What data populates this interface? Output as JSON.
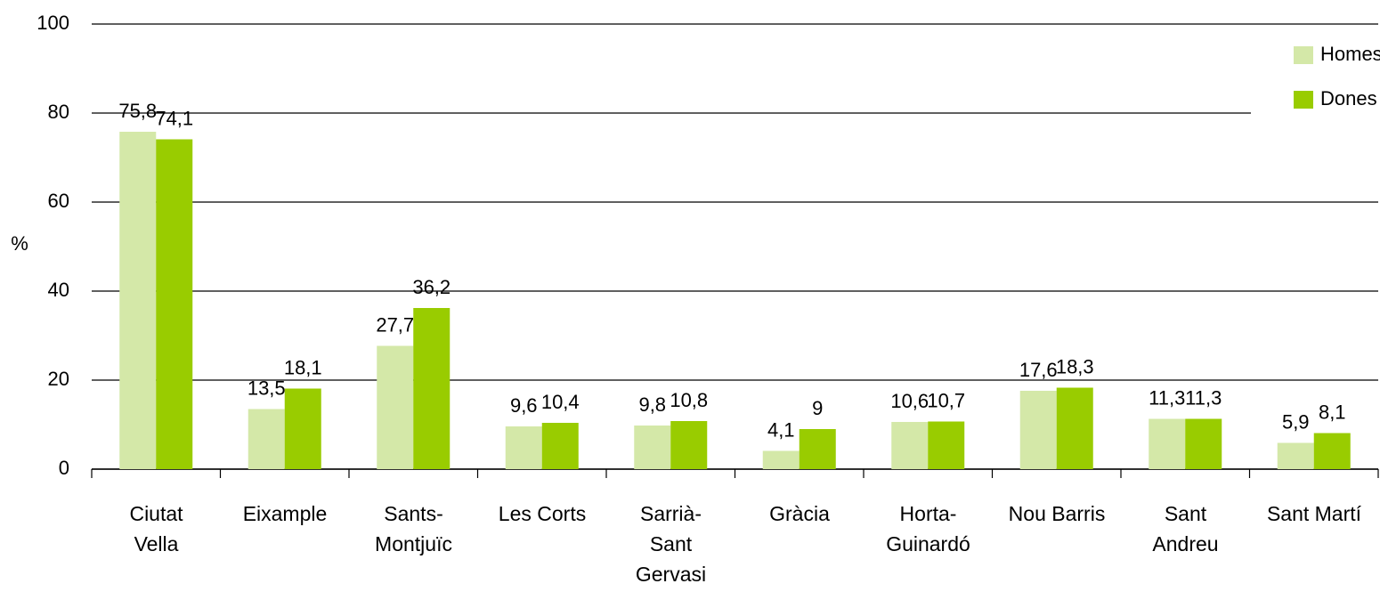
{
  "chart_data": {
    "type": "bar",
    "y_label": "%",
    "categories": [
      "Ciutat\nVella",
      "Eixample",
      "Sants-\nMontjuïc",
      "Les Corts",
      "Sarrià-\nSant\nGervasi",
      "Gràcia",
      "Horta-\nGuinardó",
      "Nou Barris",
      "Sant\nAndreu",
      "Sant Martí"
    ],
    "series": [
      {
        "name": "Homes",
        "color": "#d4e8a8",
        "values": [
          75.8,
          13.5,
          27.7,
          9.6,
          9.8,
          4.1,
          10.6,
          17.6,
          11.3,
          5.9
        ],
        "value_labels": [
          "75,8",
          "13,5",
          "27,7",
          "9,6",
          "9,8",
          "4,1",
          "10,6",
          "17,6",
          "11,3",
          "5,9"
        ]
      },
      {
        "name": "Dones",
        "color": "#99cc00",
        "values": [
          74.1,
          18.1,
          36.2,
          10.4,
          10.8,
          9,
          10.7,
          18.3,
          11.3,
          8.1
        ],
        "value_labels": [
          "74,1",
          "18,1",
          "36,2",
          "10,4",
          "10,8",
          "9",
          "10,7",
          "18,3",
          "11,3",
          "8,1"
        ]
      }
    ],
    "ylim": [
      0,
      100
    ],
    "yticks": [
      0,
      20,
      40,
      60,
      80,
      100
    ],
    "grid": true,
    "legend": "top-right"
  }
}
